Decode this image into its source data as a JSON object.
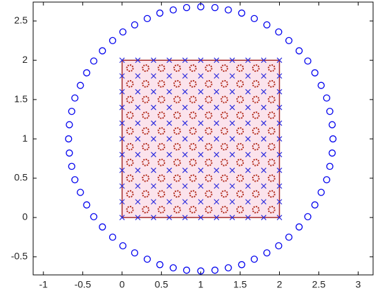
{
  "chart_data": {
    "type": "scatter",
    "xlim": [
      -1.13,
      3.19
    ],
    "ylim": [
      -0.73,
      2.74
    ],
    "xticks": [
      -1,
      -0.5,
      0,
      0.5,
      1,
      1.5,
      2,
      2.5,
      3
    ],
    "yticks": [
      -0.5,
      0,
      0.5,
      1,
      1.5,
      2,
      2.5
    ],
    "series": [
      {
        "marker": "line",
        "color": "#a52a2a",
        "fill": "#fbe3ec",
        "x": [
          0,
          2,
          2,
          0,
          0
        ],
        "values": [
          0,
          0,
          2,
          2,
          0
        ]
      },
      {
        "marker": "o",
        "color": "#0000ee",
        "x": [
          2.68,
          2.67,
          2.64,
          2.6,
          2.53,
          2.45,
          2.36,
          2.25,
          2.12,
          1.99,
          1.84,
          1.68,
          1.52,
          1.35,
          1.18,
          1,
          0.82,
          0.65,
          0.48,
          0.32,
          0.16,
          0.01,
          -0.12,
          -0.25,
          -0.36,
          -0.45,
          -0.53,
          -0.6,
          -0.64,
          -0.67,
          -0.68,
          -0.67,
          -0.64,
          -0.6,
          -0.53,
          -0.45,
          -0.36,
          -0.25,
          -0.12,
          0.01,
          0.16,
          0.32,
          0.48,
          0.65,
          0.82,
          1,
          1.18,
          1.35,
          1.52,
          1.68,
          1.84,
          1.99,
          2.12,
          2.25,
          2.36,
          2.45,
          2.53,
          2.6,
          2.64,
          2.67
        ],
        "values": [
          1,
          1.18,
          1.35,
          1.52,
          1.68,
          1.84,
          1.99,
          2.12,
          2.25,
          2.36,
          2.45,
          2.53,
          2.6,
          2.64,
          2.67,
          2.68,
          2.67,
          2.64,
          2.6,
          2.53,
          2.45,
          2.36,
          2.25,
          2.12,
          1.99,
          1.84,
          1.68,
          1.52,
          1.35,
          1.18,
          1,
          0.82,
          0.65,
          0.48,
          0.32,
          0.16,
          0.01,
          -0.12,
          -0.25,
          -0.36,
          -0.45,
          -0.53,
          -0.6,
          -0.64,
          -0.67,
          -0.68,
          -0.67,
          -0.64,
          -0.6,
          -0.53,
          -0.45,
          -0.36,
          -0.25,
          -0.12,
          0.01,
          0.16,
          0.32,
          0.48,
          0.65,
          0.82
        ]
      },
      {
        "marker": "x",
        "color": "#2b2bdd",
        "x": [
          0,
          0.2,
          0.4,
          0.6,
          0.8,
          1,
          1.2,
          1.4,
          1.6,
          1.8,
          2
        ],
        "values": [
          0,
          0,
          0,
          0,
          0,
          0,
          0,
          0,
          0,
          0,
          0
        ]
      },
      {
        "marker": "x",
        "color": "#2b2bdd",
        "x": [
          0,
          0.2,
          0.4,
          0.6,
          0.8,
          1,
          1.2,
          1.4,
          1.6,
          1.8,
          2
        ],
        "values": [
          0.2,
          0.2,
          0.2,
          0.2,
          0.2,
          0.2,
          0.2,
          0.2,
          0.2,
          0.2,
          0.2
        ]
      },
      {
        "marker": "x",
        "color": "#2b2bdd",
        "x": [
          0,
          0.2,
          0.4,
          0.6,
          0.8,
          1,
          1.2,
          1.4,
          1.6,
          1.8,
          2
        ],
        "values": [
          0.4,
          0.4,
          0.4,
          0.4,
          0.4,
          0.4,
          0.4,
          0.4,
          0.4,
          0.4,
          0.4
        ]
      },
      {
        "marker": "x",
        "color": "#2b2bdd",
        "x": [
          0,
          0.2,
          0.4,
          0.6,
          0.8,
          1,
          1.2,
          1.4,
          1.6,
          1.8,
          2
        ],
        "values": [
          0.6,
          0.6,
          0.6,
          0.6,
          0.6,
          0.6,
          0.6,
          0.6,
          0.6,
          0.6,
          0.6
        ]
      },
      {
        "marker": "x",
        "color": "#2b2bdd",
        "x": [
          0,
          0.2,
          0.4,
          0.6,
          0.8,
          1,
          1.2,
          1.4,
          1.6,
          1.8,
          2
        ],
        "values": [
          0.8,
          0.8,
          0.8,
          0.8,
          0.8,
          0.8,
          0.8,
          0.8,
          0.8,
          0.8,
          0.8
        ]
      },
      {
        "marker": "x",
        "color": "#2b2bdd",
        "x": [
          0,
          0.2,
          0.4,
          0.6,
          0.8,
          1,
          1.2,
          1.4,
          1.6,
          1.8,
          2
        ],
        "values": [
          1,
          1,
          1,
          1,
          1,
          1,
          1,
          1,
          1,
          1,
          1
        ]
      },
      {
        "marker": "x",
        "color": "#2b2bdd",
        "x": [
          0,
          0.2,
          0.4,
          0.6,
          0.8,
          1,
          1.2,
          1.4,
          1.6,
          1.8,
          2
        ],
        "values": [
          1.2,
          1.2,
          1.2,
          1.2,
          1.2,
          1.2,
          1.2,
          1.2,
          1.2,
          1.2,
          1.2
        ]
      },
      {
        "marker": "x",
        "color": "#2b2bdd",
        "x": [
          0,
          0.2,
          0.4,
          0.6,
          0.8,
          1,
          1.2,
          1.4,
          1.6,
          1.8,
          2
        ],
        "values": [
          1.4,
          1.4,
          1.4,
          1.4,
          1.4,
          1.4,
          1.4,
          1.4,
          1.4,
          1.4,
          1.4
        ]
      },
      {
        "marker": "x",
        "color": "#2b2bdd",
        "x": [
          0,
          0.2,
          0.4,
          0.6,
          0.8,
          1,
          1.2,
          1.4,
          1.6,
          1.8,
          2
        ],
        "values": [
          1.6,
          1.6,
          1.6,
          1.6,
          1.6,
          1.6,
          1.6,
          1.6,
          1.6,
          1.6,
          1.6
        ]
      },
      {
        "marker": "x",
        "color": "#2b2bdd",
        "x": [
          0,
          0.2,
          0.4,
          0.6,
          0.8,
          1,
          1.2,
          1.4,
          1.6,
          1.8,
          2
        ],
        "values": [
          1.8,
          1.8,
          1.8,
          1.8,
          1.8,
          1.8,
          1.8,
          1.8,
          1.8,
          1.8,
          1.8
        ]
      },
      {
        "marker": "x",
        "color": "#2b2bdd",
        "x": [
          0,
          0.2,
          0.4,
          0.6,
          0.8,
          1,
          1.2,
          1.4,
          1.6,
          1.8,
          2
        ],
        "values": [
          2,
          2,
          2,
          2,
          2,
          2,
          2,
          2,
          2,
          2,
          2
        ]
      },
      {
        "marker": "ring",
        "color": "#b22a1a",
        "x": [
          0.1,
          0.3,
          0.5,
          0.7,
          0.9,
          1.1,
          1.3,
          1.5,
          1.7,
          1.9
        ],
        "values": [
          0.1,
          0.1,
          0.1,
          0.1,
          0.1,
          0.1,
          0.1,
          0.1,
          0.1,
          0.1
        ]
      },
      {
        "marker": "ring",
        "color": "#b22a1a",
        "x": [
          0.1,
          0.3,
          0.5,
          0.7,
          0.9,
          1.1,
          1.3,
          1.5,
          1.7,
          1.9
        ],
        "values": [
          0.3,
          0.3,
          0.3,
          0.3,
          0.3,
          0.3,
          0.3,
          0.3,
          0.3,
          0.3
        ]
      },
      {
        "marker": "ring",
        "color": "#b22a1a",
        "x": [
          0.1,
          0.3,
          0.5,
          0.7,
          0.9,
          1.1,
          1.3,
          1.5,
          1.7,
          1.9
        ],
        "values": [
          0.5,
          0.5,
          0.5,
          0.5,
          0.5,
          0.5,
          0.5,
          0.5,
          0.5,
          0.5
        ]
      },
      {
        "marker": "ring",
        "color": "#b22a1a",
        "x": [
          0.1,
          0.3,
          0.5,
          0.7,
          0.9,
          1.1,
          1.3,
          1.5,
          1.7,
          1.9
        ],
        "values": [
          0.7,
          0.7,
          0.7,
          0.7,
          0.7,
          0.7,
          0.7,
          0.7,
          0.7,
          0.7
        ]
      },
      {
        "marker": "ring",
        "color": "#b22a1a",
        "x": [
          0.1,
          0.3,
          0.5,
          0.7,
          0.9,
          1.1,
          1.3,
          1.5,
          1.7,
          1.9
        ],
        "values": [
          0.9,
          0.9,
          0.9,
          0.9,
          0.9,
          0.9,
          0.9,
          0.9,
          0.9,
          0.9
        ]
      },
      {
        "marker": "ring",
        "color": "#b22a1a",
        "x": [
          0.1,
          0.3,
          0.5,
          0.7,
          0.9,
          1.1,
          1.3,
          1.5,
          1.7,
          1.9
        ],
        "values": [
          1.1,
          1.1,
          1.1,
          1.1,
          1.1,
          1.1,
          1.1,
          1.1,
          1.1,
          1.1
        ]
      },
      {
        "marker": "ring",
        "color": "#b22a1a",
        "x": [
          0.1,
          0.3,
          0.5,
          0.7,
          0.9,
          1.1,
          1.3,
          1.5,
          1.7,
          1.9
        ],
        "values": [
          1.3,
          1.3,
          1.3,
          1.3,
          1.3,
          1.3,
          1.3,
          1.3,
          1.3,
          1.3
        ]
      },
      {
        "marker": "ring",
        "color": "#b22a1a",
        "x": [
          0.1,
          0.3,
          0.5,
          0.7,
          0.9,
          1.1,
          1.3,
          1.5,
          1.7,
          1.9
        ],
        "values": [
          1.5,
          1.5,
          1.5,
          1.5,
          1.5,
          1.5,
          1.5,
          1.5,
          1.5,
          1.5
        ]
      },
      {
        "marker": "ring",
        "color": "#b22a1a",
        "x": [
          0.1,
          0.3,
          0.5,
          0.7,
          0.9,
          1.1,
          1.3,
          1.5,
          1.7,
          1.9
        ],
        "values": [
          1.7,
          1.7,
          1.7,
          1.7,
          1.7,
          1.7,
          1.7,
          1.7,
          1.7,
          1.7
        ]
      },
      {
        "marker": "ring",
        "color": "#b22a1a",
        "x": [
          0.1,
          0.3,
          0.5,
          0.7,
          0.9,
          1.1,
          1.3,
          1.5,
          1.7,
          1.9
        ],
        "values": [
          1.9,
          1.9,
          1.9,
          1.9,
          1.9,
          1.9,
          1.9,
          1.9,
          1.9,
          1.9
        ]
      }
    ]
  }
}
